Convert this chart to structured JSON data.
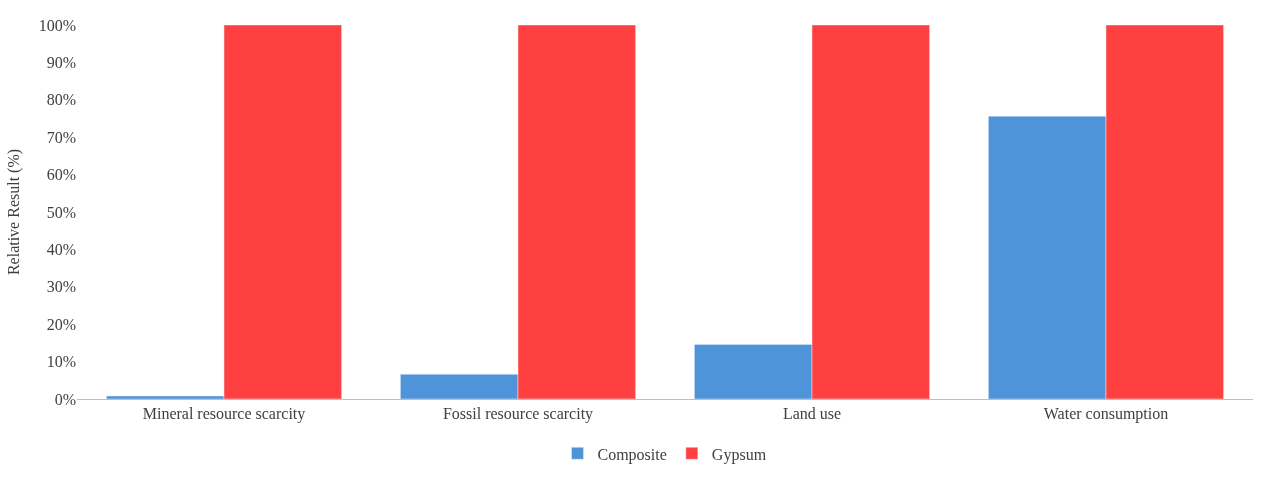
{
  "chart_data": {
    "type": "bar",
    "ylabel": "Relative Result (%)",
    "categories": [
      "Mineral resource scarcity",
      "Fossil resource scarcity",
      "Land use",
      "Water consumption"
    ],
    "series": [
      {
        "name": "Composite",
        "color": "#4f94d9",
        "values": [
          0.8,
          6.6,
          14.6,
          75.6
        ]
      },
      {
        "name": "Gypsum",
        "color": "#ff4040",
        "values": [
          100,
          100,
          100,
          100
        ]
      }
    ],
    "ylim": [
      0,
      100
    ],
    "yticks": [
      {
        "value": 0,
        "label": "0%"
      },
      {
        "value": 10,
        "label": "10%"
      },
      {
        "value": 20,
        "label": "20%"
      },
      {
        "value": 30,
        "label": "30%"
      },
      {
        "value": 40,
        "label": "40%"
      },
      {
        "value": 50,
        "label": "50%"
      },
      {
        "value": 60,
        "label": "60%"
      },
      {
        "value": 70,
        "label": "70%"
      },
      {
        "value": 80,
        "label": "80%"
      },
      {
        "value": 90,
        "label": "90%"
      },
      {
        "value": 100,
        "label": "100%"
      }
    ],
    "legend": "bottom"
  }
}
